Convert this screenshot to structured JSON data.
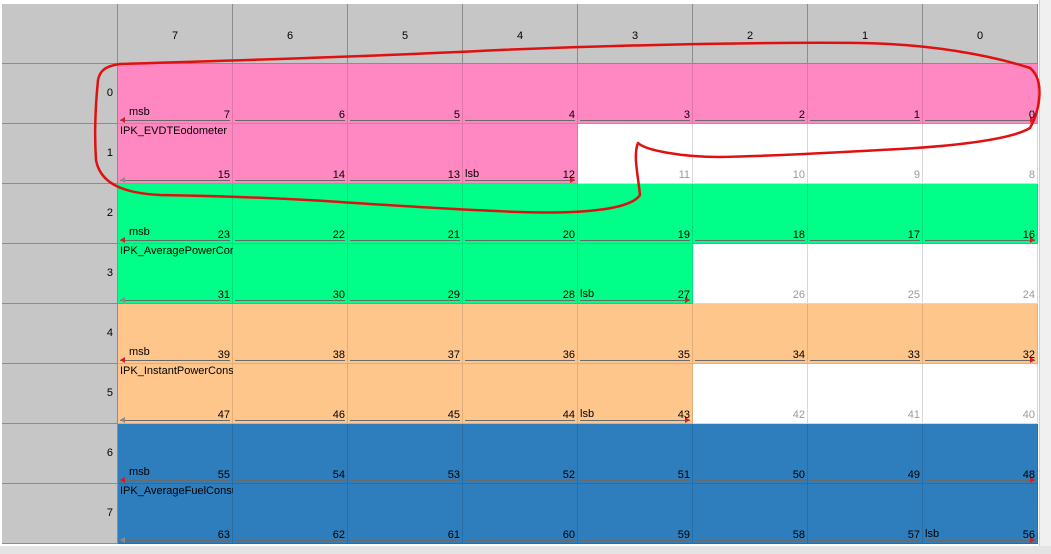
{
  "column_headers": [
    "7",
    "6",
    "5",
    "4",
    "3",
    "2",
    "1",
    "0"
  ],
  "row_headers": [
    "0",
    "1",
    "2",
    "3",
    "4",
    "5",
    "6",
    "7"
  ],
  "colors": {
    "pink": "#ff88c2",
    "green": "#00ff88",
    "orange": "#ffc68c",
    "blue": "#2e7ebd",
    "free": "#ffffff",
    "header": "#c6c6c6",
    "annotation": "#e01010"
  },
  "signals": [
    {
      "name": "IPK_EVDTEodometer",
      "color": "#ff88c2",
      "msb_bit": 7,
      "lsb_bit": 12,
      "msb_label": "msb",
      "lsb_label": "lsb"
    },
    {
      "name": "IPK_AveragePowerConsumption",
      "color": "#00ff88",
      "msb_bit": 23,
      "lsb_bit": 27,
      "msb_label": "msb",
      "lsb_label": "lsb"
    },
    {
      "name": "IPK_InstantPowerConsumption",
      "color": "#ffc68c",
      "msb_bit": 39,
      "lsb_bit": 43,
      "msb_label": "msb",
      "lsb_label": "lsb"
    },
    {
      "name": "IPK_AverageFuelConsumption",
      "color": "#2e7ebd",
      "msb_bit": 55,
      "lsb_bit": 56,
      "msb_label": "msb",
      "lsb_label": "lsb"
    }
  ]
}
